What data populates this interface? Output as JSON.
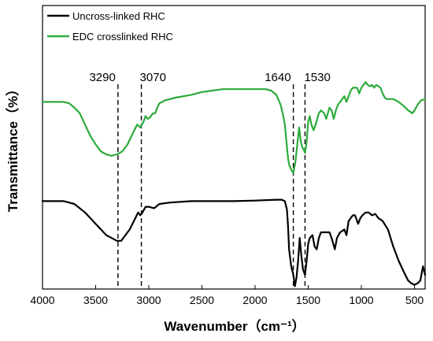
{
  "chart_data": {
    "type": "line",
    "xlabel": "Wavenumber（cm⁻¹）",
    "ylabel": "Transmittance（%）",
    "xlim": [
      4000,
      400
    ],
    "x_reversed": true,
    "xticks": [
      4000,
      3500,
      3000,
      2500,
      2000,
      1500,
      1000,
      500
    ],
    "ylim": [
      0,
      100
    ],
    "y_ticks_shown": false,
    "grid": false,
    "legend_position": "top-left",
    "peak_lines": [
      {
        "x": 3290,
        "label": "3290"
      },
      {
        "x": 3070,
        "label": "3070"
      },
      {
        "x": 1640,
        "label": "1640"
      },
      {
        "x": 1530,
        "label": "1530"
      }
    ],
    "series": [
      {
        "name": "Uncross-linked RHC",
        "color": "#000000",
        "points": [
          [
            4000,
            31
          ],
          [
            3800,
            31
          ],
          [
            3700,
            30
          ],
          [
            3600,
            27
          ],
          [
            3500,
            23
          ],
          [
            3400,
            19
          ],
          [
            3350,
            18
          ],
          [
            3300,
            17
          ],
          [
            3260,
            17
          ],
          [
            3220,
            19
          ],
          [
            3180,
            21
          ],
          [
            3140,
            24
          ],
          [
            3100,
            27
          ],
          [
            3080,
            26
          ],
          [
            3060,
            27
          ],
          [
            3030,
            29
          ],
          [
            3000,
            29
          ],
          [
            2950,
            28.5
          ],
          [
            2900,
            30
          ],
          [
            2800,
            30.5
          ],
          [
            2600,
            31
          ],
          [
            2400,
            31
          ],
          [
            2200,
            31
          ],
          [
            2000,
            31.2
          ],
          [
            1800,
            31.5
          ],
          [
            1750,
            31.5
          ],
          [
            1720,
            31
          ],
          [
            1700,
            28
          ],
          [
            1690,
            22
          ],
          [
            1680,
            14
          ],
          [
            1660,
            8
          ],
          [
            1640,
            5
          ],
          [
            1625,
            1
          ],
          [
            1610,
            4
          ],
          [
            1595,
            10
          ],
          [
            1580,
            18
          ],
          [
            1565,
            12
          ],
          [
            1550,
            7
          ],
          [
            1530,
            5
          ],
          [
            1515,
            10
          ],
          [
            1500,
            16
          ],
          [
            1485,
            18
          ],
          [
            1460,
            19
          ],
          [
            1440,
            15
          ],
          [
            1420,
            14
          ],
          [
            1400,
            18
          ],
          [
            1380,
            20
          ],
          [
            1340,
            20
          ],
          [
            1300,
            20
          ],
          [
            1280,
            18
          ],
          [
            1250,
            14
          ],
          [
            1230,
            18
          ],
          [
            1200,
            20
          ],
          [
            1160,
            21
          ],
          [
            1140,
            19
          ],
          [
            1120,
            24
          ],
          [
            1100,
            25
          ],
          [
            1080,
            26
          ],
          [
            1060,
            26
          ],
          [
            1050,
            25
          ],
          [
            1030,
            23
          ],
          [
            1010,
            25
          ],
          [
            990,
            26
          ],
          [
            960,
            27
          ],
          [
            930,
            27
          ],
          [
            900,
            26
          ],
          [
            870,
            26.5
          ],
          [
            840,
            25
          ],
          [
            800,
            24
          ],
          [
            750,
            21
          ],
          [
            700,
            15
          ],
          [
            650,
            10
          ],
          [
            600,
            6
          ],
          [
            560,
            3
          ],
          [
            530,
            2
          ],
          [
            500,
            1.5
          ],
          [
            470,
            2
          ],
          [
            445,
            3
          ],
          [
            420,
            8
          ],
          [
            400,
            5
          ]
        ]
      },
      {
        "name": "EDC crosslinked RHC",
        "color": "#2eab3c",
        "points": [
          [
            4000,
            66
          ],
          [
            3800,
            66
          ],
          [
            3750,
            65.5
          ],
          [
            3700,
            64
          ],
          [
            3650,
            62
          ],
          [
            3600,
            58
          ],
          [
            3550,
            54
          ],
          [
            3500,
            51
          ],
          [
            3450,
            48.5
          ],
          [
            3400,
            47.5
          ],
          [
            3350,
            47
          ],
          [
            3300,
            47.5
          ],
          [
            3250,
            48.5
          ],
          [
            3200,
            51
          ],
          [
            3150,
            55
          ],
          [
            3110,
            58
          ],
          [
            3080,
            57
          ],
          [
            3050,
            59
          ],
          [
            3030,
            61
          ],
          [
            3010,
            60
          ],
          [
            2990,
            60.5
          ],
          [
            2960,
            62
          ],
          [
            2940,
            62
          ],
          [
            2920,
            64
          ],
          [
            2900,
            65.5
          ],
          [
            2850,
            66.5
          ],
          [
            2750,
            67.5
          ],
          [
            2600,
            68.5
          ],
          [
            2500,
            69.5
          ],
          [
            2400,
            70
          ],
          [
            2300,
            70.5
          ],
          [
            2200,
            70.5
          ],
          [
            2100,
            70.5
          ],
          [
            2000,
            70.5
          ],
          [
            1900,
            70.5
          ],
          [
            1850,
            70
          ],
          [
            1800,
            68.5
          ],
          [
            1760,
            65
          ],
          [
            1740,
            62
          ],
          [
            1720,
            58
          ],
          [
            1700,
            50
          ],
          [
            1690,
            46
          ],
          [
            1680,
            44
          ],
          [
            1660,
            42
          ],
          [
            1640,
            41
          ],
          [
            1620,
            45
          ],
          [
            1600,
            52
          ],
          [
            1585,
            57
          ],
          [
            1570,
            52
          ],
          [
            1555,
            50
          ],
          [
            1540,
            49
          ],
          [
            1530,
            48
          ],
          [
            1515,
            52
          ],
          [
            1500,
            59
          ],
          [
            1485,
            61
          ],
          [
            1470,
            58
          ],
          [
            1450,
            56
          ],
          [
            1430,
            58
          ],
          [
            1400,
            62
          ],
          [
            1380,
            63
          ],
          [
            1350,
            62
          ],
          [
            1330,
            60
          ],
          [
            1300,
            64
          ],
          [
            1280,
            63
          ],
          [
            1260,
            60
          ],
          [
            1240,
            63
          ],
          [
            1220,
            65
          ],
          [
            1200,
            66
          ],
          [
            1180,
            67
          ],
          [
            1160,
            68
          ],
          [
            1140,
            66
          ],
          [
            1120,
            68
          ],
          [
            1100,
            70
          ],
          [
            1080,
            71
          ],
          [
            1060,
            71
          ],
          [
            1040,
            71
          ],
          [
            1020,
            69
          ],
          [
            1000,
            71
          ],
          [
            980,
            72
          ],
          [
            960,
            73
          ],
          [
            940,
            72
          ],
          [
            920,
            71.5
          ],
          [
            900,
            72
          ],
          [
            880,
            71
          ],
          [
            860,
            72
          ],
          [
            840,
            71.5
          ],
          [
            820,
            71
          ],
          [
            800,
            69
          ],
          [
            780,
            67.5
          ],
          [
            760,
            67
          ],
          [
            740,
            67
          ],
          [
            700,
            67
          ],
          [
            650,
            66
          ],
          [
            600,
            64.5
          ],
          [
            560,
            63
          ],
          [
            520,
            62
          ],
          [
            500,
            63
          ],
          [
            470,
            65
          ],
          [
            440,
            66.5
          ],
          [
            400,
            67
          ]
        ]
      }
    ]
  }
}
